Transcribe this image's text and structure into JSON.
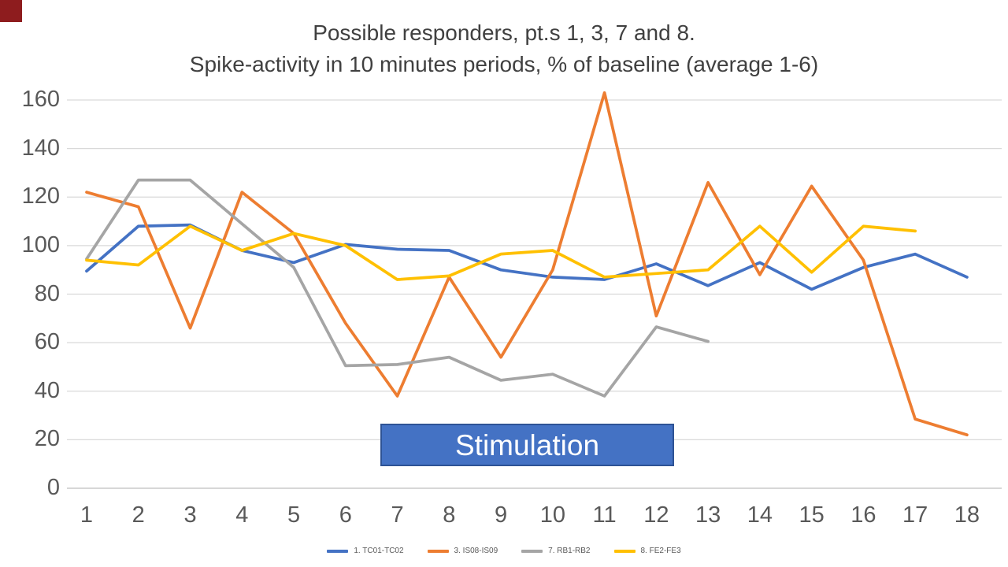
{
  "title": {
    "line1": "Possible responders, pt.s 1, 3, 7 and 8.",
    "line2": "Spike-activity in 10 minutes periods, % of baseline (average 1-6)"
  },
  "decorations": {
    "corner_square_color": "#8E1C1E"
  },
  "chart_data": {
    "type": "line",
    "title": "Possible responders, pt.s 1, 3, 7 and 8. Spike-activity in 10 minutes periods, % of baseline (average 1-6)",
    "xlabel": "",
    "ylabel": "",
    "categories": [
      1,
      2,
      3,
      4,
      5,
      6,
      7,
      8,
      9,
      10,
      11,
      12,
      13,
      14,
      15,
      16,
      17,
      18
    ],
    "series": [
      {
        "name": "1. TC01-TC02",
        "color": "#4472C4",
        "values": [
          89.5,
          108,
          108.5,
          98,
          93,
          100.5,
          98.5,
          98,
          90,
          87,
          86,
          92.5,
          83.5,
          93,
          82,
          91,
          96.5,
          87
        ]
      },
      {
        "name": "3. IS08-IS09",
        "color": "#ED7D31",
        "values": [
          122,
          116,
          66,
          122,
          105,
          68,
          38,
          87,
          54,
          90,
          163,
          71,
          126,
          88,
          124.5,
          94,
          28.5,
          22
        ]
      },
      {
        "name": "7. RB1-RB2",
        "color": "#A5A5A5",
        "values": [
          94.5,
          127,
          127,
          109,
          91,
          50.5,
          51,
          54,
          44.5,
          47,
          38,
          66.5,
          60.5,
          null,
          null,
          null,
          null,
          null
        ]
      },
      {
        "name": "8. FE2-FE3",
        "color": "#FFC000",
        "values": [
          94,
          92,
          108,
          98,
          105,
          100,
          86,
          87.5,
          96.5,
          98,
          87,
          88.5,
          90,
          108,
          89,
          108,
          106,
          null
        ]
      }
    ],
    "ylim": [
      0,
      160
    ],
    "y_ticks": [
      0,
      20,
      40,
      60,
      80,
      100,
      120,
      140,
      160
    ],
    "grid": "horizontal",
    "gridline_color": "#D9D9D9",
    "axis_label_color": "#595959",
    "legend_position": "bottom",
    "annotation": {
      "label": "Stimulation",
      "x_span_periods": [
        6.7,
        12.3
      ],
      "fill": "#4472C4",
      "border": "#2E5395",
      "text_color": "#FFFFFF"
    }
  }
}
